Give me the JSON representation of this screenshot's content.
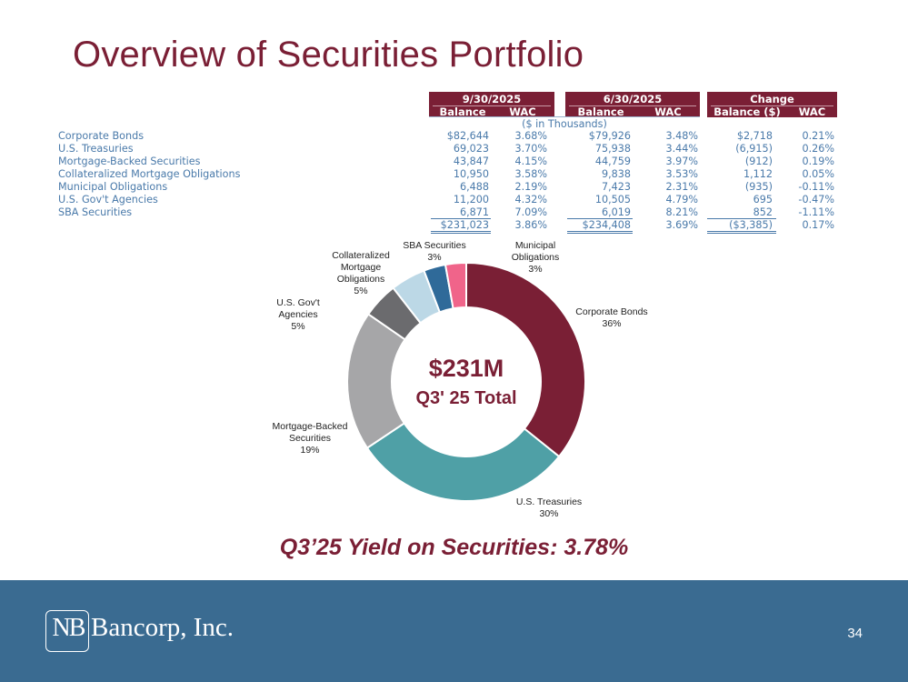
{
  "title": "Overview of Securities Portfolio",
  "table": {
    "periods": [
      {
        "label": "9/30/2025",
        "sub": [
          "Balance",
          "WAC"
        ]
      },
      {
        "label": "6/30/2025",
        "sub": [
          "Balance",
          "WAC"
        ]
      },
      {
        "label": "Change",
        "sub": [
          "Balance ($)",
          "WAC"
        ]
      }
    ],
    "units": "($ in Thousands)",
    "rows": [
      {
        "label": "Corporate Bonds",
        "v": [
          "$82,644",
          "3.68%",
          "$79,926",
          "3.48%",
          "$2,718",
          "0.21%"
        ]
      },
      {
        "label": "U.S. Treasuries",
        "v": [
          "69,023",
          "3.70%",
          "75,938",
          "3.44%",
          "(6,915)",
          "0.26%"
        ]
      },
      {
        "label": "Mortgage-Backed Securities",
        "v": [
          "43,847",
          "4.15%",
          "44,759",
          "3.97%",
          "(912)",
          "0.19%"
        ]
      },
      {
        "label": "Collateralized Mortgage Obligations",
        "v": [
          "10,950",
          "3.58%",
          "9,838",
          "3.53%",
          "1,112",
          "0.05%"
        ]
      },
      {
        "label": "Municipal Obligations",
        "v": [
          "6,488",
          "2.19%",
          "7,423",
          "2.31%",
          "(935)",
          "-0.11%"
        ]
      },
      {
        "label": "U.S. Gov't Agencies",
        "v": [
          "11,200",
          "4.32%",
          "10,505",
          "4.79%",
          "695",
          "-0.47%"
        ]
      },
      {
        "label": "SBA Securities",
        "v": [
          "6,871",
          "7.09%",
          "6,019",
          "8.21%",
          "852",
          "-1.11%"
        ]
      }
    ],
    "total": {
      "v": [
        "$231,023",
        "3.86%",
        "$234,408",
        "3.69%",
        "($3,385)",
        "0.17%"
      ]
    }
  },
  "chart_data": {
    "type": "pie",
    "title": "$231M Q3' 25 Total",
    "slices": [
      {
        "name": "Corporate Bonds",
        "percent": 36,
        "value": 82644,
        "color": "#7a1f35",
        "label": [
          "Corporate Bonds",
          "36%"
        ]
      },
      {
        "name": "U.S. Treasuries",
        "percent": 30,
        "value": 69023,
        "color": "#4fa0a6",
        "label": [
          "U.S. Treasuries",
          "30%"
        ]
      },
      {
        "name": "Mortgage-Backed Securities",
        "percent": 19,
        "value": 43847,
        "color": "#a6a6a8",
        "label": [
          "Mortgage-Backed",
          "Securities",
          "19%"
        ]
      },
      {
        "name": "U.S. Gov't Agencies",
        "percent": 5,
        "value": 11200,
        "color": "#6b6b6e",
        "label": [
          "U.S. Gov't",
          "Agencies",
          "5%"
        ]
      },
      {
        "name": "Collateralized Mortgage Obligations",
        "percent": 5,
        "value": 10950,
        "color": "#bcd8e6",
        "label": [
          "Collateralized",
          "Mortgage",
          "Obligations",
          "5%"
        ]
      },
      {
        "name": "SBA Securities",
        "percent": 3,
        "value": 6871,
        "color": "#2f6a99",
        "label": [
          "SBA Securities",
          "3%"
        ]
      },
      {
        "name": "Municipal Obligations",
        "percent": 3,
        "value": 6488,
        "color": "#f0648a",
        "label": [
          "Municipal",
          "Obligations",
          "3%"
        ]
      }
    ],
    "center_amount": "$231M",
    "center_label": "Q3' 25 Total"
  },
  "yield_text": "Q3’25 Yield on Securities: 3.78%",
  "footer": {
    "logo_mark": "NB",
    "company": "Bancorp, Inc.",
    "page_number": "34"
  }
}
